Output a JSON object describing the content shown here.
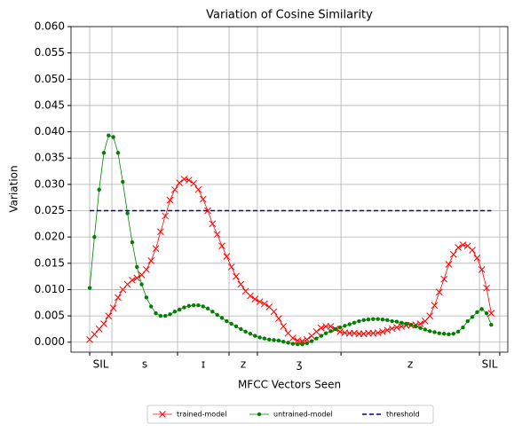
{
  "chart_data": {
    "type": "line",
    "title": "Variation of Cosine Similarity",
    "xlabel": "MFCC Vectors Seen",
    "ylabel": "Variation",
    "x": [
      0,
      1,
      2,
      3,
      4,
      5,
      6,
      7,
      8,
      9,
      10,
      11,
      12,
      13,
      14,
      15,
      16,
      17,
      18,
      19,
      20,
      21,
      22,
      23,
      24,
      25,
      26,
      27,
      28,
      29,
      30,
      31,
      32,
      33,
      34,
      35,
      36,
      37,
      38,
      39,
      40,
      41,
      42,
      43,
      44,
      45,
      46,
      47,
      48,
      49,
      50,
      51,
      52,
      53,
      54,
      55,
      56,
      57,
      58,
      59,
      60,
      61,
      62,
      63,
      64,
      65,
      66,
      67,
      68,
      69,
      70,
      71,
      72,
      73,
      74,
      75,
      76,
      77,
      78,
      79,
      80,
      81,
      82,
      83,
      84,
      85
    ],
    "series": [
      {
        "name": "trained-model",
        "color": "#ff0000",
        "marker": "x",
        "values": [
          0.0005,
          0.0015,
          0.0025,
          0.0035,
          0.005,
          0.0065,
          0.0085,
          0.01,
          0.011,
          0.0118,
          0.0122,
          0.0128,
          0.0138,
          0.0155,
          0.0178,
          0.021,
          0.024,
          0.027,
          0.029,
          0.0303,
          0.031,
          0.0308,
          0.0302,
          0.029,
          0.0272,
          0.025,
          0.0225,
          0.0205,
          0.0183,
          0.0163,
          0.0143,
          0.0125,
          0.011,
          0.0097,
          0.0088,
          0.0082,
          0.0077,
          0.0073,
          0.0067,
          0.0058,
          0.0045,
          0.003,
          0.0017,
          0.0008,
          0.0003,
          0.0002,
          0.0005,
          0.0012,
          0.002,
          0.0027,
          0.003,
          0.003,
          0.0025,
          0.002,
          0.0018,
          0.0017,
          0.0017,
          0.0016,
          0.0016,
          0.0017,
          0.0017,
          0.0018,
          0.002,
          0.0023,
          0.0026,
          0.0028,
          0.003,
          0.0032,
          0.0032,
          0.0033,
          0.0035,
          0.004,
          0.005,
          0.007,
          0.0095,
          0.012,
          0.0148,
          0.0167,
          0.018,
          0.0185,
          0.0183,
          0.0175,
          0.016,
          0.0138,
          0.0103,
          0.0055
        ]
      },
      {
        "name": "untrained-model",
        "color": "#008000",
        "marker": "dot",
        "values": [
          0.0103,
          0.02,
          0.029,
          0.036,
          0.0393,
          0.039,
          0.036,
          0.0305,
          0.0245,
          0.019,
          0.0143,
          0.011,
          0.0085,
          0.0068,
          0.0055,
          0.005,
          0.005,
          0.0053,
          0.0058,
          0.0062,
          0.0066,
          0.0069,
          0.007,
          0.007,
          0.0068,
          0.0064,
          0.0058,
          0.0052,
          0.0046,
          0.004,
          0.0035,
          0.003,
          0.0025,
          0.002,
          0.0016,
          0.0012,
          0.0009,
          0.0007,
          0.0005,
          0.0004,
          0.0003,
          0.0001,
          -0.0001,
          -0.0003,
          -0.0004,
          -0.0004,
          -0.0002,
          0.0002,
          0.0007,
          0.0012,
          0.0017,
          0.0021,
          0.0025,
          0.0028,
          0.0031,
          0.0034,
          0.0037,
          0.004,
          0.0042,
          0.0043,
          0.0044,
          0.0044,
          0.0043,
          0.0042,
          0.004,
          0.0039,
          0.0037,
          0.0035,
          0.0033,
          0.003,
          0.0027,
          0.0024,
          0.0021,
          0.0019,
          0.0017,
          0.0016,
          0.0015,
          0.0016,
          0.002,
          0.0028,
          0.004,
          0.0048,
          0.0057,
          0.0063,
          0.0055,
          0.0033
        ]
      },
      {
        "name": "threshold",
        "color": "#00008b",
        "dashed": true,
        "x": [
          0,
          85
        ],
        "values": [
          0.025,
          0.025
        ]
      }
    ],
    "xlim": [
      -3.95,
      88.5
    ],
    "xticks": [
      0,
      4.7,
      18.6,
      29.5,
      35.5,
      53.2,
      82.5,
      86.8
    ],
    "segment_labels": [
      "SIL",
      "s",
      "ɪ",
      "z",
      "ʒ",
      "z",
      "SIL"
    ],
    "ylim": [
      -0.0019,
      0.06
    ],
    "yticks": [
      {
        "value": 0,
        "label": "0.000"
      },
      {
        "value": 0.005,
        "label": "0.005"
      },
      {
        "value": 0.01,
        "label": "0.010"
      },
      {
        "value": 0.015,
        "label": "0.015"
      },
      {
        "value": 0.02,
        "label": "0.020"
      },
      {
        "value": 0.025,
        "label": "0.025"
      },
      {
        "value": 0.03,
        "label": "0.030"
      },
      {
        "value": 0.035,
        "label": "0.035"
      },
      {
        "value": 0.04,
        "label": "0.040"
      },
      {
        "value": 0.045,
        "label": "0.045"
      },
      {
        "value": 0.05,
        "label": "0.050"
      },
      {
        "value": 0.055,
        "label": "0.055"
      },
      {
        "value": 0.06,
        "label": "0.060"
      }
    ],
    "grid": true,
    "legend": "below"
  }
}
